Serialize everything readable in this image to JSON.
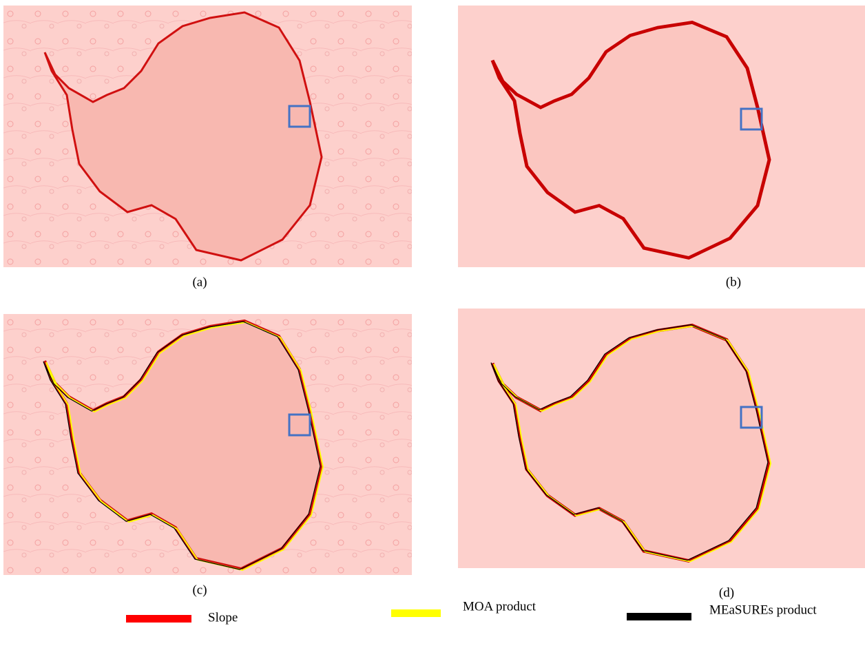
{
  "panels": [
    {
      "label": "(a)"
    },
    {
      "label": "(b)"
    },
    {
      "label": "(c)"
    },
    {
      "label": "(d)"
    }
  ],
  "legend": [
    {
      "label": "Slope",
      "color": "#ff0000"
    },
    {
      "label": "MOA product",
      "color": "#ffff00"
    },
    {
      "label": "MEaSUREs product",
      "color": "#000000"
    }
  ]
}
